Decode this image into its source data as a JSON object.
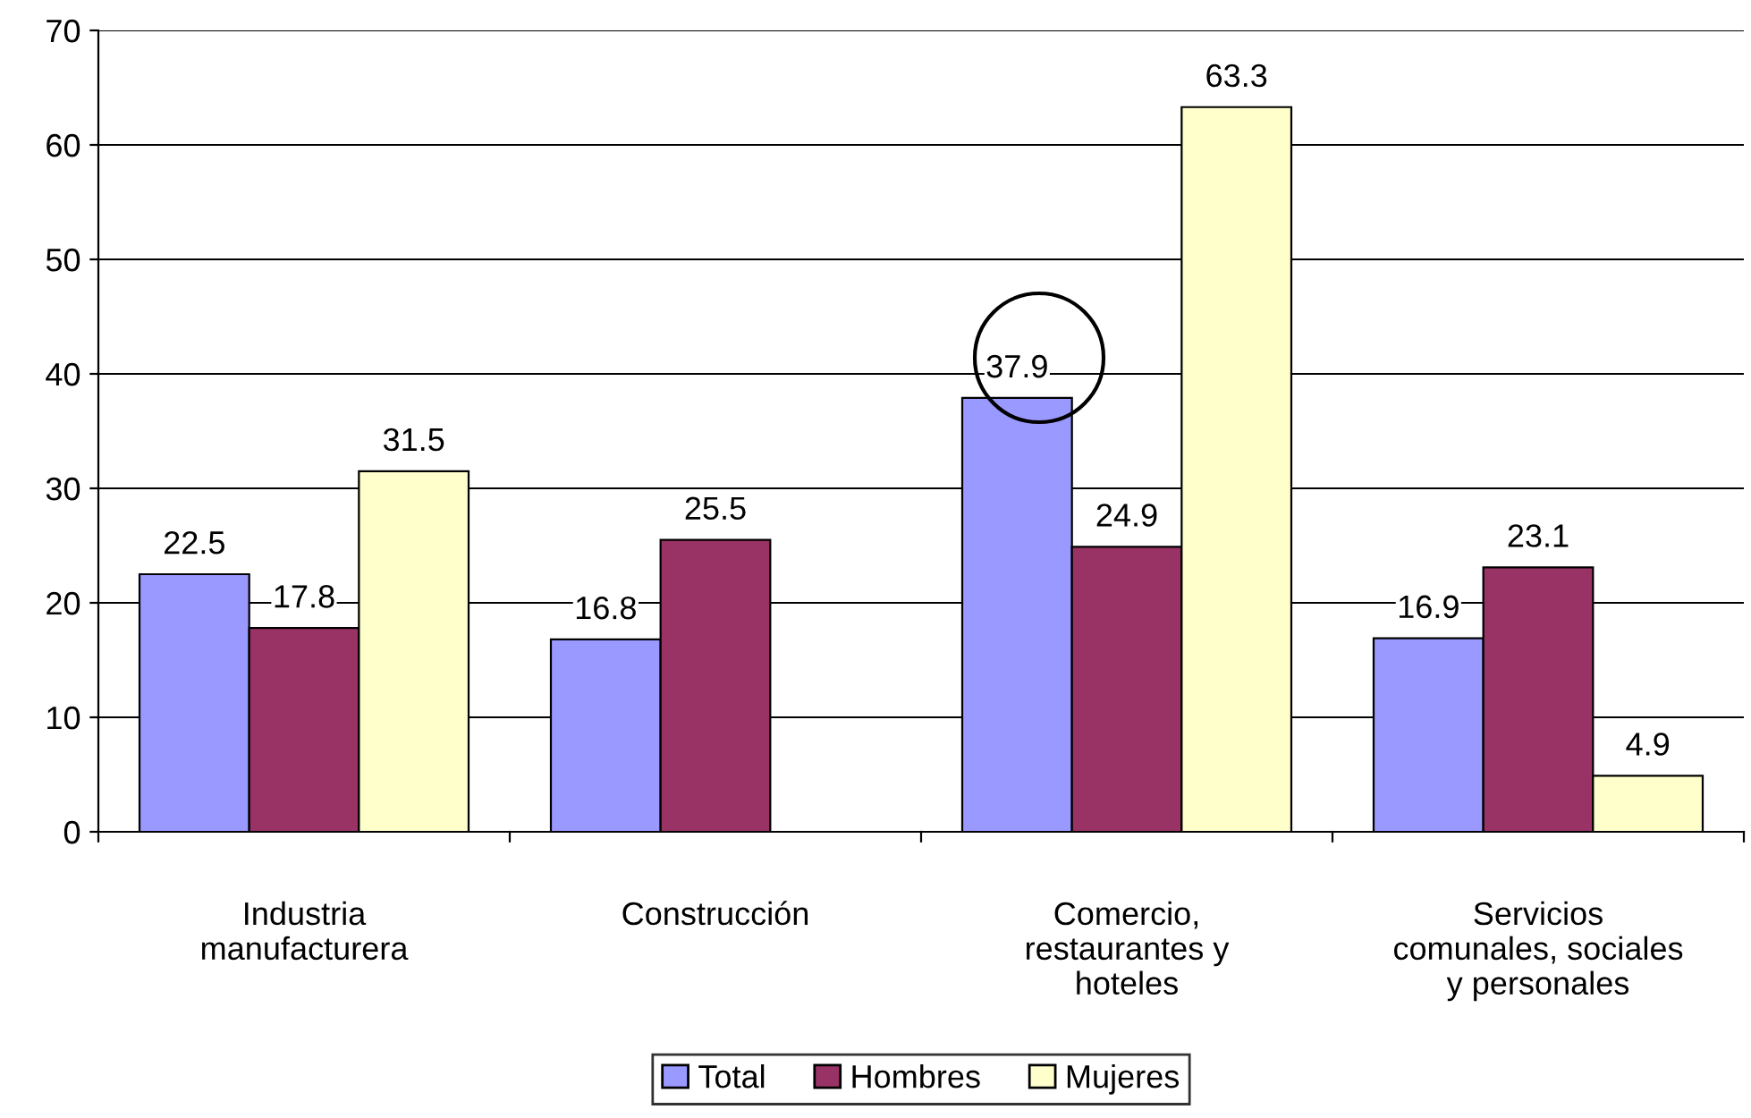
{
  "chart_data": {
    "type": "bar",
    "categories": [
      "Industria\nmanufacturera",
      "Construcción",
      "Comercio,\nrestaurantes y\nhoteles",
      "Servicios\ncomunales, sociales\ny personales"
    ],
    "series": [
      {
        "name": "Total",
        "color": "#9999ff",
        "values": [
          22.5,
          16.8,
          37.9,
          16.9
        ]
      },
      {
        "name": "Hombres",
        "color": "#993366",
        "values": [
          17.8,
          25.5,
          24.9,
          23.1
        ]
      },
      {
        "name": "Mujeres",
        "color": "#ffffcc",
        "values": [
          31.5,
          null,
          63.3,
          4.9
        ]
      }
    ],
    "ylim": [
      0,
      70
    ],
    "yticks": [
      0,
      10,
      20,
      30,
      40,
      50,
      60,
      70
    ],
    "grid": "y",
    "legend": "bottom",
    "data_labels": true
  }
}
